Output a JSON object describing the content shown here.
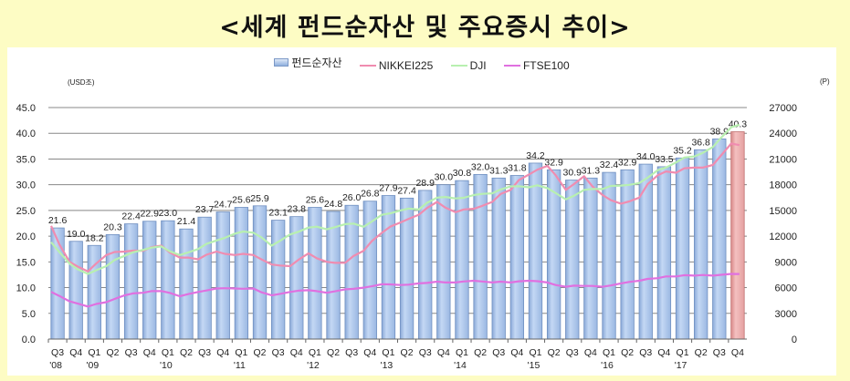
{
  "title": "<세계 펀드순자산 및 주요증시 추이>",
  "chart_data": {
    "type": "bar",
    "title": "세계 펀드순자산 및 주요증시 추이",
    "left_axis": {
      "unit": "(USD조)",
      "ticks": [
        "0.0",
        "5.0",
        "10.0",
        "15.0",
        "20.0",
        "25.0",
        "30.0",
        "35.0",
        "40.0",
        "45.0"
      ],
      "ylim": [
        0,
        45
      ]
    },
    "right_axis": {
      "unit": "(P)",
      "ticks": [
        "0",
        "3000",
        "6000",
        "9000",
        "12000",
        "15000",
        "18000",
        "21000",
        "24000",
        "27000"
      ],
      "ylim": [
        0,
        27000
      ]
    },
    "legend": [
      {
        "name": "펀드순자산",
        "type": "bar",
        "color": "#a9c4ec"
      },
      {
        "name": "NIKKEI225",
        "type": "line",
        "color": "#f08cb0"
      },
      {
        "name": "DJI",
        "type": "line",
        "color": "#b8f0b0"
      },
      {
        "name": "FTSE100",
        "type": "line",
        "color": "#e070e0"
      }
    ],
    "categories": [
      "Q3",
      "Q4",
      "Q1",
      "Q2",
      "Q3",
      "Q4",
      "Q1",
      "Q2",
      "Q3",
      "Q4",
      "Q1",
      "Q2",
      "Q3",
      "Q4",
      "Q1",
      "Q2",
      "Q3",
      "Q4",
      "Q1",
      "Q2",
      "Q3",
      "Q4",
      "Q1",
      "Q2",
      "Q3",
      "Q4",
      "Q1",
      "Q2",
      "Q3",
      "Q4",
      "Q1",
      "Q2",
      "Q3",
      "Q4",
      "Q1",
      "Q2",
      "Q3",
      "Q4"
    ],
    "year_labels": {
      "0": "'08",
      "2": "'09",
      "6": "'10",
      "10": "'11",
      "14": "'12",
      "18": "'13",
      "22": "'14",
      "26": "'15",
      "30": "'16",
      "34": "'17"
    },
    "series": [
      {
        "name": "펀드순자산",
        "axis": "left",
        "values": [
          21.6,
          19.0,
          18.2,
          20.3,
          22.4,
          22.9,
          23.0,
          21.4,
          23.7,
          24.7,
          25.6,
          25.9,
          23.1,
          23.8,
          25.6,
          24.8,
          26.0,
          26.8,
          27.9,
          27.4,
          28.9,
          30.0,
          30.8,
          32.0,
          31.3,
          31.8,
          34.2,
          32.9,
          30.9,
          31.3,
          32.4,
          32.9,
          34.0,
          33.5,
          35.2,
          36.8,
          38.9,
          40.3
        ],
        "highlight_last": "#e8a0a0"
      },
      {
        "name": "NIKKEI225",
        "axis": "right",
        "values": [
          13200,
          9000,
          7900,
          9800,
          10200,
          10300,
          10900,
          9500,
          9300,
          10200,
          9800,
          9800,
          8700,
          8500,
          10000,
          9000,
          8900,
          10300,
          12400,
          13600,
          14500,
          16000,
          14800,
          15200,
          16000,
          17400,
          19200,
          20200,
          17400,
          19000,
          16800,
          15800,
          16500,
          19100,
          19400,
          20000,
          20300,
          22800
        ]
      },
      {
        "name": "DJI",
        "axis": "right",
        "values": [
          11300,
          8800,
          7600,
          8500,
          9700,
          10400,
          10800,
          9800,
          10500,
          11500,
          12300,
          12400,
          10900,
          12200,
          13000,
          12800,
          13400,
          13100,
          14500,
          15000,
          15100,
          16500,
          16400,
          16800,
          17000,
          17800,
          17700,
          17600,
          16300,
          17400,
          17500,
          17900,
          18200,
          19700,
          20600,
          21300,
          22400,
          24700
        ]
      },
      {
        "name": "FTSE100",
        "axis": "right",
        "values": [
          5500,
          4400,
          3800,
          4300,
          5100,
          5400,
          5600,
          5000,
          5500,
          5900,
          5900,
          5900,
          5100,
          5500,
          5700,
          5400,
          5800,
          6000,
          6400,
          6300,
          6500,
          6700,
          6600,
          6800,
          6600,
          6600,
          6800,
          6600,
          6100,
          6200,
          6100,
          6500,
          6800,
          7100,
          7300,
          7400,
          7400,
          7600
        ]
      }
    ],
    "grid": true
  }
}
